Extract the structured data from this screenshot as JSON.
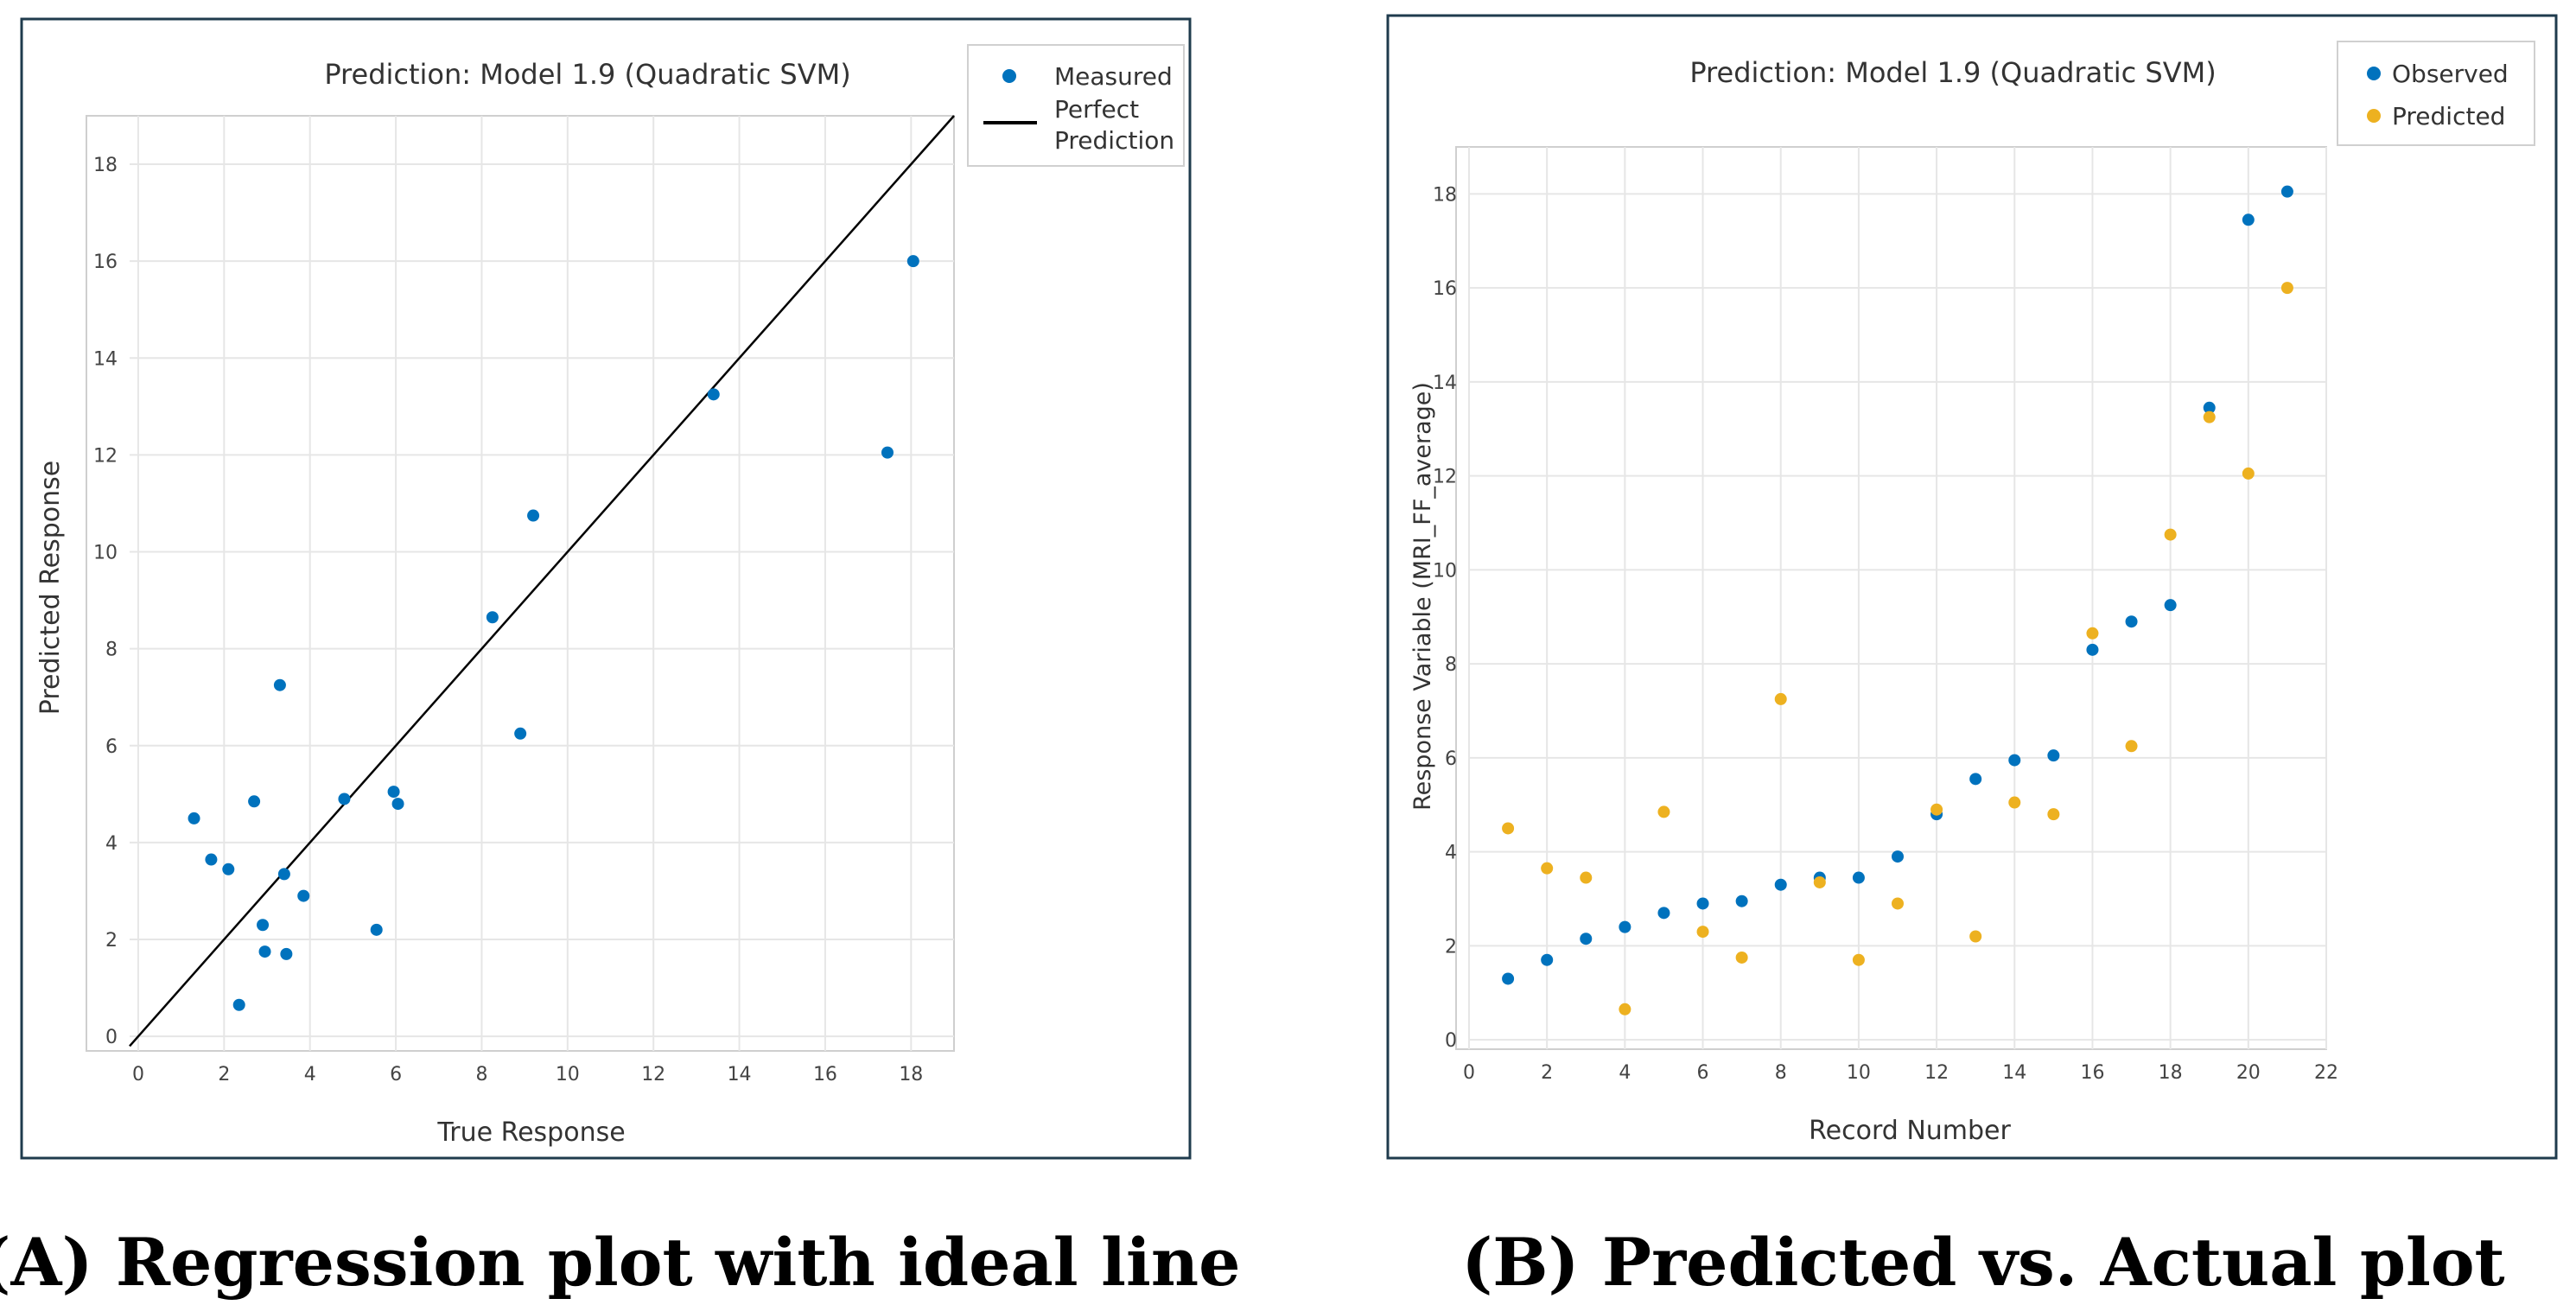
{
  "colors": {
    "frame": "#1f3b4d",
    "observed": "#0072bd",
    "predicted": "#edb120",
    "ideal_line": "#000000",
    "grid": "#e6e6e6"
  },
  "chart_data": [
    {
      "type": "scatter",
      "title": "Prediction: Model 1.9 (Quadratic SVM)",
      "xlabel": "True Response",
      "ylabel": "Predicted Response",
      "caption": "(A) Regression plot with ideal line",
      "xlim": [
        -0.2,
        19
      ],
      "ylim": [
        -0.3,
        19
      ],
      "xticks": [
        0,
        2,
        4,
        6,
        8,
        10,
        12,
        14,
        16,
        18
      ],
      "yticks": [
        0,
        2,
        4,
        6,
        8,
        10,
        12,
        14,
        16,
        18
      ],
      "grid": true,
      "legend_position": "top-right-outside",
      "legend": {
        "measured": "Measured",
        "ideal_line1": "Perfect",
        "ideal_line2": "Prediction"
      },
      "ideal_line": [
        [
          -0.2,
          -0.2
        ],
        [
          19,
          19
        ]
      ],
      "points": [
        [
          1.3,
          4.5
        ],
        [
          1.7,
          3.65
        ],
        [
          2.1,
          3.45
        ],
        [
          2.35,
          0.65
        ],
        [
          2.7,
          4.85
        ],
        [
          2.9,
          2.3
        ],
        [
          2.95,
          1.75
        ],
        [
          3.3,
          7.25
        ],
        [
          3.4,
          3.35
        ],
        [
          3.45,
          1.7
        ],
        [
          3.85,
          2.9
        ],
        [
          4.8,
          4.9
        ],
        [
          5.55,
          2.2
        ],
        [
          5.95,
          5.05
        ],
        [
          6.05,
          4.8
        ],
        [
          8.25,
          8.65
        ],
        [
          8.9,
          6.25
        ],
        [
          9.2,
          10.75
        ],
        [
          13.4,
          13.25
        ],
        [
          17.45,
          12.05
        ],
        [
          18.05,
          16.0
        ]
      ]
    },
    {
      "type": "scatter",
      "title": "Prediction: Model 1.9 (Quadratic SVM)",
      "xlabel": "Record Number",
      "ylabel": "Response Variable (MRI_FF_average)",
      "caption": "(B) Predicted vs. Actual plot",
      "xlim": [
        0,
        22
      ],
      "ylim": [
        -0.2,
        19
      ],
      "xticks": [
        0,
        2,
        4,
        6,
        8,
        10,
        12,
        14,
        16,
        18,
        20,
        22
      ],
      "yticks": [
        0,
        2,
        4,
        6,
        8,
        10,
        12,
        14,
        16,
        18
      ],
      "grid": true,
      "legend_position": "top-right",
      "series": [
        {
          "name": "Observed",
          "x": [
            1,
            2,
            3,
            4,
            5,
            6,
            7,
            8,
            9,
            10,
            11,
            12,
            13,
            14,
            15,
            16,
            17,
            18,
            19,
            20,
            21
          ],
          "y": [
            1.3,
            1.7,
            2.15,
            2.4,
            2.7,
            2.9,
            2.95,
            3.3,
            3.45,
            3.45,
            3.9,
            4.8,
            5.55,
            5.95,
            6.05,
            8.3,
            8.9,
            9.25,
            13.45,
            17.45,
            18.05
          ]
        },
        {
          "name": "Predicted",
          "x": [
            1,
            2,
            3,
            4,
            5,
            6,
            7,
            8,
            9,
            10,
            11,
            12,
            13,
            14,
            15,
            16,
            17,
            18,
            19,
            20,
            21
          ],
          "y": [
            4.5,
            3.65,
            3.45,
            0.65,
            4.85,
            2.3,
            1.75,
            7.25,
            3.35,
            1.7,
            2.9,
            4.9,
            2.2,
            5.05,
            4.8,
            8.65,
            6.25,
            10.75,
            13.25,
            12.05,
            16.0
          ]
        }
      ]
    }
  ]
}
